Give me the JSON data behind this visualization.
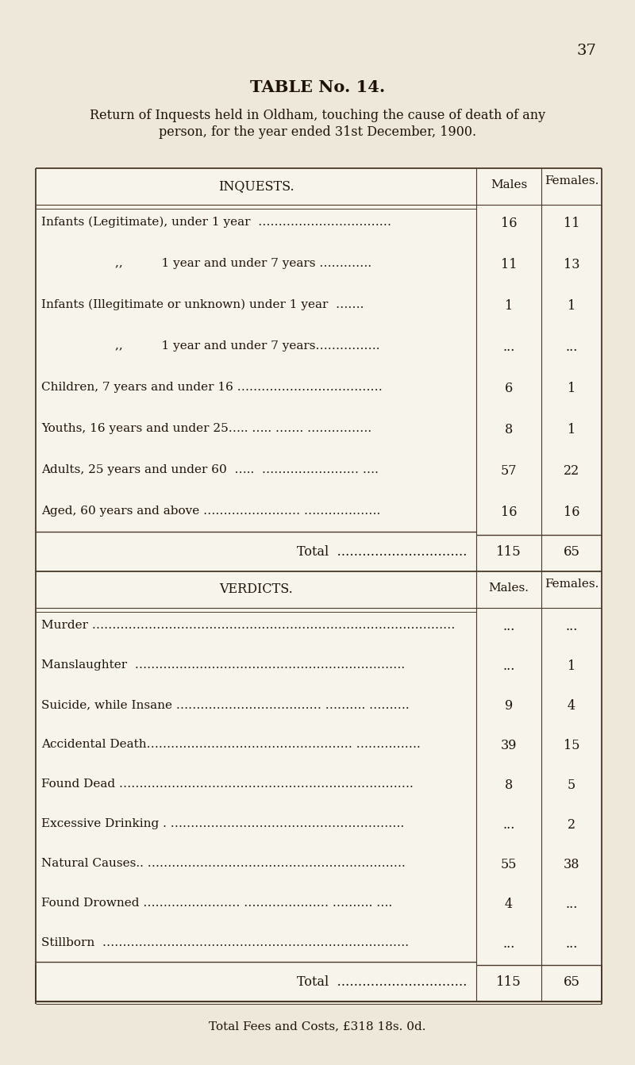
{
  "bg_color": "#ede8da",
  "table_bg": "#f5f2ea",
  "line_color": "#4a3828",
  "text_color": "#1e1208",
  "page_number": "37",
  "title": "TABLE No. 14.",
  "subtitle_line1": "Return of Inquests held in Oldham, touching the cause of death of any",
  "subtitle_line2": "person, for the year ended 31st December, 1900.",
  "inquest_header": "INQUESTS.",
  "verdicts_header": "VERDICTS.",
  "col_males": "Males",
  "col_females": "Females.",
  "col_males2": "Males.",
  "col_females2": "Females.",
  "inquest_rows": [
    {
      "label": "Infants (Legitimate), under 1 year  ……………………………",
      "males": "16",
      "females": "11",
      "indent": false
    },
    {
      "label": ",,          1 year and under 7 years ………….",
      "males": "11",
      "females": "13",
      "indent": true
    },
    {
      "label": "Infants (Illegitimate or unknown) under 1 year  …….",
      "males": "1",
      "females": "1",
      "indent": false
    },
    {
      "label": ",,          1 year and under 7 years…………….",
      "males": "...",
      "females": "...",
      "indent": true
    },
    {
      "label": "Children, 7 years and under 16 ………………………………",
      "males": "6",
      "females": "1",
      "indent": false
    },
    {
      "label": "Youths, 16 years and under 25….. ….. ……. …………….",
      "males": "8",
      "females": "1",
      "indent": false
    },
    {
      "label": "Adults, 25 years and under 60  …..  …………………… ….",
      "males": "57",
      "females": "22",
      "indent": false
    },
    {
      "label": "Aged, 60 years and above …………………… ……………….",
      "males": "16",
      "females": "16",
      "indent": false
    }
  ],
  "inquest_total_males": "115",
  "inquest_total_females": "65",
  "verdict_rows": [
    {
      "label": "Murder ………………………………………………………………………………",
      "males": "...",
      "females": "..."
    },
    {
      "label": "Manslaughter  ………………………………………………………….",
      "males": "...",
      "females": "1"
    },
    {
      "label": "Suicide, while Insane ……………………………… ………. ……….",
      "males": "9",
      "females": "4"
    },
    {
      "label": "Accidental Death…………………………………………… …………….",
      "males": "39",
      "females": "15"
    },
    {
      "label": "Found Dead ……………………………………………………………….",
      "males": "8",
      "females": "5"
    },
    {
      "label": "Excessive Drinking . ………………………………………………….",
      "males": "...",
      "females": "2"
    },
    {
      "label": "Natural Causes.. ……………………………………………………….",
      "males": "55",
      "females": "38"
    },
    {
      "label": "Found Drowned …………………… ………………… ………. ….",
      "males": "4",
      "females": "..."
    },
    {
      "label": "Stillborn  ………………………………………………………………….",
      "males": "...",
      "females": "..."
    }
  ],
  "verdict_total_males": "115",
  "verdict_total_females": "65",
  "footer": "Total Fees and Costs, £318 18s. 0d."
}
